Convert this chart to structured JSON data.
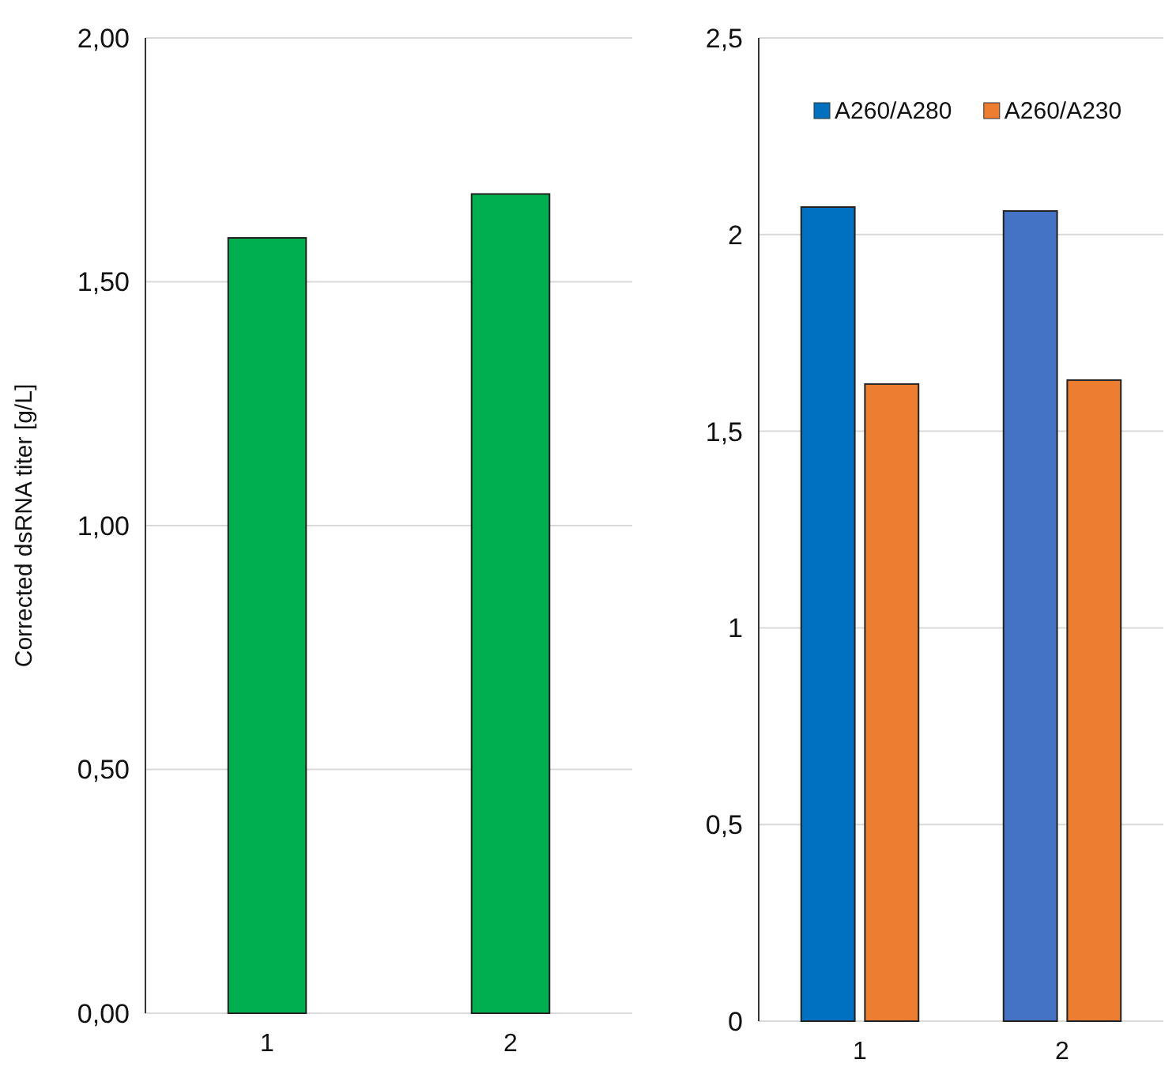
{
  "chart_data": [
    {
      "type": "bar",
      "ylabel": "Corrected dsRNA titer [g/L]",
      "categories": [
        "1",
        "2"
      ],
      "values": [
        1.59,
        1.68
      ],
      "color": "#00b050",
      "ylim": [
        0,
        2
      ],
      "yticks": [
        {
          "value": 0,
          "label": "0,00"
        },
        {
          "value": 0.5,
          "label": "0,50"
        },
        {
          "value": 1,
          "label": "1,00"
        },
        {
          "value": 1.5,
          "label": "1,50"
        },
        {
          "value": 2,
          "label": "2,00"
        }
      ],
      "grid": "y"
    },
    {
      "type": "bar",
      "categories": [
        "1",
        "2"
      ],
      "series": [
        {
          "name": "A260/A280",
          "color": "#0070c0",
          "colors": [
            "#0070c0",
            "#4472c4"
          ],
          "values": [
            2.07,
            2.06
          ]
        },
        {
          "name": "A260/A230",
          "color": "#ed7d31",
          "values": [
            1.62,
            1.63
          ]
        }
      ],
      "ylim": [
        0,
        2.5
      ],
      "yticks": [
        0,
        {
          "value": 0.5,
          "label": "0,5"
        },
        1,
        {
          "value": 1.5,
          "label": "1,5"
        },
        2,
        {
          "value": 2.5,
          "label": "2,5"
        }
      ],
      "grid": "y",
      "legend": "top"
    }
  ]
}
